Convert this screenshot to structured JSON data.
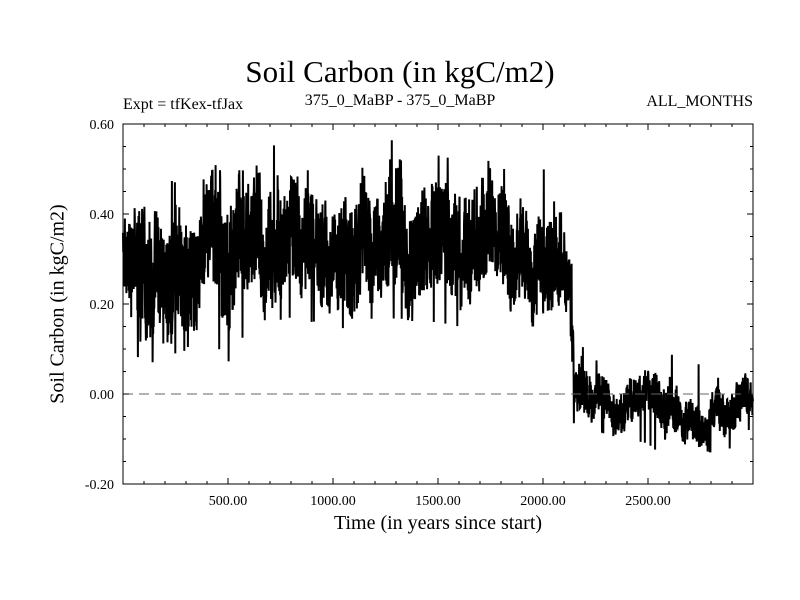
{
  "chart_data": {
    "type": "line",
    "title": "Soil Carbon (in kgC/m2)",
    "subtitle_left": "Expt = tfKex-tfJax",
    "subtitle_center": "375_0_MaBP - 375_0_MaBP",
    "subtitle_right": "ALL_MONTHS",
    "xlabel": "Time (in years since start)",
    "ylabel": "Soil Carbon (in kgC/m2)",
    "xlim": [
      0,
      3000
    ],
    "ylim": [
      -0.2,
      0.6
    ],
    "x_ticks": [
      500,
      1000,
      1500,
      2000,
      2500
    ],
    "x_tick_labels": [
      "500.00",
      "1000.00",
      "1500.00",
      "2000.00",
      "2500.00"
    ],
    "y_ticks": [
      -0.2,
      0.0,
      0.2,
      0.4,
      0.6
    ],
    "y_tick_labels": [
      "-0.20",
      "0.00",
      "0.20",
      "0.40",
      "0.60"
    ],
    "zero_line": true,
    "grid": false,
    "series": [
      {
        "x": [
          0,
          100,
          200,
          300,
          400,
          500,
          600,
          700,
          800,
          900,
          1000,
          1100,
          1200,
          1300,
          1400,
          1500,
          1600,
          1700,
          1800,
          1900,
          2000,
          2100,
          2120,
          2150,
          2200,
          2250,
          2300,
          2400,
          2500,
          2600,
          2700,
          2800,
          2900,
          3000
        ],
        "mean": [
          0.3,
          0.3,
          0.29,
          0.3,
          0.3,
          0.29,
          0.32,
          0.31,
          0.32,
          0.33,
          0.33,
          0.32,
          0.31,
          0.32,
          0.33,
          0.32,
          0.33,
          0.32,
          0.33,
          0.31,
          0.31,
          0.31,
          0.3,
          0.03,
          -0.01,
          0.01,
          0.0,
          -0.01,
          -0.03,
          -0.04,
          -0.03,
          -0.04,
          -0.03,
          0.0
        ],
        "max": [
          0.44,
          0.5,
          0.48,
          0.46,
          0.48,
          0.55,
          0.51,
          0.56,
          0.52,
          0.53,
          0.51,
          0.54,
          0.5,
          0.58,
          0.54,
          0.53,
          0.52,
          0.53,
          0.5,
          0.5,
          0.5,
          0.48,
          0.46,
          0.14,
          0.18,
          0.12,
          0.1,
          0.1,
          0.06,
          0.09,
          0.07,
          0.06,
          0.08,
          0.12
        ],
        "min": [
          0.16,
          0.05,
          0.1,
          0.08,
          0.14,
          0.07,
          0.15,
          0.16,
          0.17,
          0.16,
          0.17,
          0.12,
          0.15,
          0.17,
          0.16,
          0.16,
          0.15,
          0.16,
          0.16,
          0.15,
          0.15,
          0.16,
          0.16,
          -0.09,
          -0.07,
          -0.08,
          -0.09,
          -0.1,
          -0.11,
          -0.15,
          -0.12,
          -0.13,
          -0.12,
          -0.07
        ]
      }
    ]
  }
}
